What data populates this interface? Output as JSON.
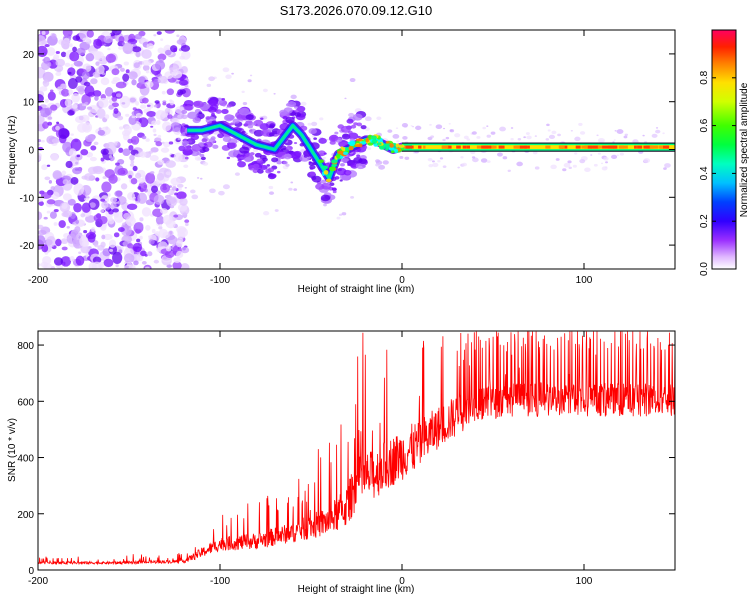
{
  "title": "S173.2026.070.09.12.G10",
  "chart_data": [
    {
      "type": "heatmap",
      "title": "S173.2026.070.09.12.G10",
      "xlabel": "Height of straight line (km)",
      "ylabel": "Frequency (Hz)",
      "xlim": [
        -200,
        150
      ],
      "ylim": [
        -25,
        25
      ],
      "xticks": [
        -200,
        -100,
        0,
        100
      ],
      "yticks": [
        -20,
        -10,
        0,
        10,
        20
      ],
      "colorbar": {
        "label": "Normalized spectral amplitude",
        "range": [
          0,
          1
        ],
        "ticks": [
          "0.0",
          "0.2",
          "0.4",
          "0.6",
          "0.8"
        ],
        "colors": [
          "#ffffff",
          "#d8a8ff",
          "#9b30ff",
          "#5a00ff",
          "#0000ff",
          "#00a0ff",
          "#00ffff",
          "#00ff80",
          "#00ff00",
          "#c0ff00",
          "#ffff00",
          "#ffa000",
          "#ff3000",
          "#ff0050"
        ]
      },
      "ridge": {
        "description": "dominant frequency track",
        "x": [
          -120,
          -110,
          -100,
          -90,
          -80,
          -70,
          -60,
          -55,
          -50,
          -45,
          -40,
          -35,
          -30,
          -25,
          -20,
          -15,
          -10,
          -5,
          0,
          10,
          30,
          60,
          100,
          150
        ],
        "y": [
          4,
          4,
          5,
          3,
          1,
          0,
          5,
          3,
          0,
          -3,
          -6,
          -1,
          0,
          1,
          2,
          2,
          1,
          0,
          0.5,
          0.5,
          0.5,
          0.5,
          0.5,
          0.5
        ]
      }
    },
    {
      "type": "line",
      "xlabel": "Height of straight line (km)",
      "ylabel": "SNR (10 * v/v)",
      "xlim": [
        -200,
        150
      ],
      "ylim": [
        0,
        850
      ],
      "xticks": [
        -200,
        -100,
        0,
        100
      ],
      "yticks": [
        0,
        200,
        400,
        600,
        800
      ],
      "series": [
        {
          "name": "SNR",
          "color": "#ff0000",
          "envelope": {
            "x": [
              -200,
              -160,
              -120,
              -110,
              -100,
              -80,
              -60,
              -50,
              -40,
              -30,
              -25,
              -20,
              -15,
              -10,
              0,
              10,
              20,
              30,
              40,
              50,
              60,
              80,
              100,
              120,
              150
            ],
            "mean": [
              25,
              25,
              30,
              60,
              90,
              100,
              130,
              150,
              170,
              220,
              300,
              320,
              330,
              360,
              400,
              440,
              500,
              540,
              580,
              590,
              600,
              600,
              600,
              600,
              600
            ],
            "spread": [
              15,
              15,
              20,
              60,
              80,
              100,
              120,
              150,
              180,
              250,
              300,
              300,
              300,
              300,
              300,
              300,
              250,
              250,
              200,
              200,
              200,
              200,
              200,
              200,
              200
            ]
          }
        }
      ]
    }
  ]
}
